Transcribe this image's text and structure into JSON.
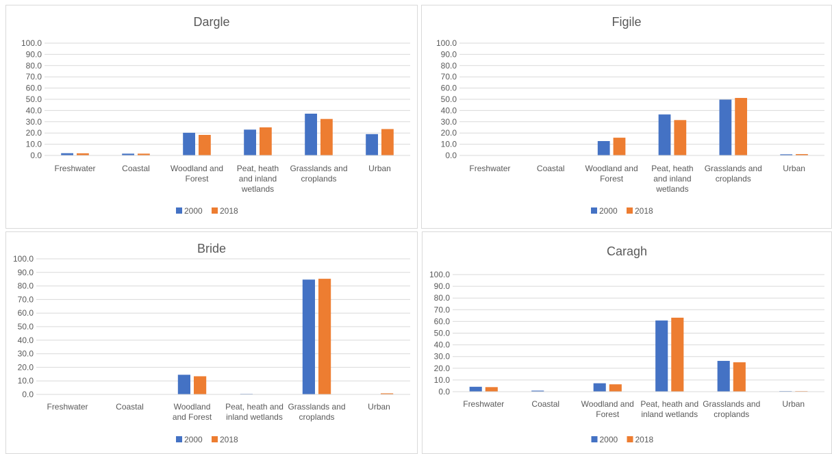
{
  "chart_data": [
    {
      "type": "bar",
      "title": "Dargle",
      "categories": [
        "Freshwater",
        "Coastal",
        "Woodland and Forest",
        "Peat, heath and inland wetlands",
        "Grasslands and croplands",
        "Urban"
      ],
      "category_lines": [
        [
          "Freshwater"
        ],
        [
          "Coastal"
        ],
        [
          "Woodland and",
          "Forest"
        ],
        [
          "Peat, heath",
          "and inland",
          "wetlands"
        ],
        [
          "Grasslands and",
          "croplands"
        ],
        [
          "Urban"
        ]
      ],
      "series": [
        {
          "name": "2000",
          "values": [
            2.0,
            1.6,
            20.2,
            23.0,
            37.2,
            19.0
          ]
        },
        {
          "name": "2018",
          "values": [
            1.9,
            1.6,
            18.3,
            25.0,
            32.5,
            23.5
          ]
        }
      ],
      "ylim": [
        0,
        100
      ],
      "yticks": [
        "0.0",
        "10.0",
        "20.0",
        "30.0",
        "40.0",
        "50.0",
        "60.0",
        "70.0",
        "80.0",
        "90.0",
        "100.0"
      ],
      "xlabel": "",
      "ylabel": "",
      "legend": "bottom"
    },
    {
      "type": "bar",
      "title": "Figile",
      "categories": [
        "Freshwater",
        "Coastal",
        "Woodland and Forest",
        "Peat, heath and inland wetlands",
        "Grasslands and croplands",
        "Urban"
      ],
      "category_lines": [
        [
          "Freshwater"
        ],
        [
          "Coastal"
        ],
        [
          "Woodland and",
          "Forest"
        ],
        [
          "Peat, heath",
          "and inland",
          "wetlands"
        ],
        [
          "Grasslands and",
          "croplands"
        ],
        [
          "Urban"
        ]
      ],
      "series": [
        {
          "name": "2000",
          "values": [
            0.0,
            0.0,
            12.8,
            36.5,
            49.7,
            1.0
          ]
        },
        {
          "name": "2018",
          "values": [
            0.0,
            0.0,
            15.8,
            31.5,
            51.2,
            1.2
          ]
        }
      ],
      "ylim": [
        0,
        100
      ],
      "yticks": [
        "0.0",
        "10.0",
        "20.0",
        "30.0",
        "40.0",
        "50.0",
        "60.0",
        "70.0",
        "80.0",
        "90.0",
        "100.0"
      ],
      "xlabel": "",
      "ylabel": "",
      "legend": "bottom"
    },
    {
      "type": "bar",
      "title": "Bride",
      "categories": [
        "Freshwater",
        "Coastal",
        "Woodland and Forest",
        "Peat, heath and inland wetlands",
        "Grasslands and croplands",
        "Urban"
      ],
      "category_lines": [
        [
          "Freshwater"
        ],
        [
          "Coastal"
        ],
        [
          "Woodland",
          "and Forest"
        ],
        [
          "Peat, heath and",
          "inland wetlands"
        ],
        [
          "Grasslands and",
          "croplands"
        ],
        [
          "Urban"
        ]
      ],
      "series": [
        {
          "name": "2000",
          "values": [
            0.0,
            0.0,
            14.5,
            0.4,
            84.7,
            0.2
          ]
        },
        {
          "name": "2018",
          "values": [
            0.0,
            0.0,
            13.4,
            0.2,
            85.3,
            0.8
          ]
        }
      ],
      "ylim": [
        0,
        100
      ],
      "yticks": [
        "0.0",
        "10.0",
        "20.0",
        "30.0",
        "40.0",
        "50.0",
        "60.0",
        "70.0",
        "80.0",
        "90.0",
        "100.0"
      ],
      "xlabel": "",
      "ylabel": "",
      "legend": "bottom"
    },
    {
      "type": "bar",
      "title": "Caragh",
      "categories": [
        "Freshwater",
        "Coastal",
        "Woodland and Forest",
        "Peat, heath and inland wetlands",
        "Grasslands and croplands",
        "Urban"
      ],
      "category_lines": [
        [
          "Freshwater"
        ],
        [
          "Coastal"
        ],
        [
          "Woodland and",
          "Forest"
        ],
        [
          "Peat, heath and",
          "inland wetlands"
        ],
        [
          "Grasslands and",
          "croplands"
        ],
        [
          "Urban"
        ]
      ],
      "series": [
        {
          "name": "2000",
          "values": [
            4.2,
            0.9,
            7.2,
            60.8,
            26.3,
            0.5
          ]
        },
        {
          "name": "2018",
          "values": [
            3.9,
            0.3,
            6.3,
            63.2,
            25.1,
            0.5
          ]
        }
      ],
      "ylim": [
        0,
        100
      ],
      "yticks": [
        "0.0",
        "10.0",
        "20.0",
        "30.0",
        "40.0",
        "50.0",
        "60.0",
        "70.0",
        "80.0",
        "90.0",
        "100.0"
      ],
      "xlabel": "",
      "ylabel": "",
      "legend": "bottom"
    }
  ],
  "colors": {
    "2000": "#4472c4",
    "2018": "#ed7d31",
    "grid": "#d9d9d9",
    "text": "#595959",
    "border": "#d9d9d9"
  }
}
